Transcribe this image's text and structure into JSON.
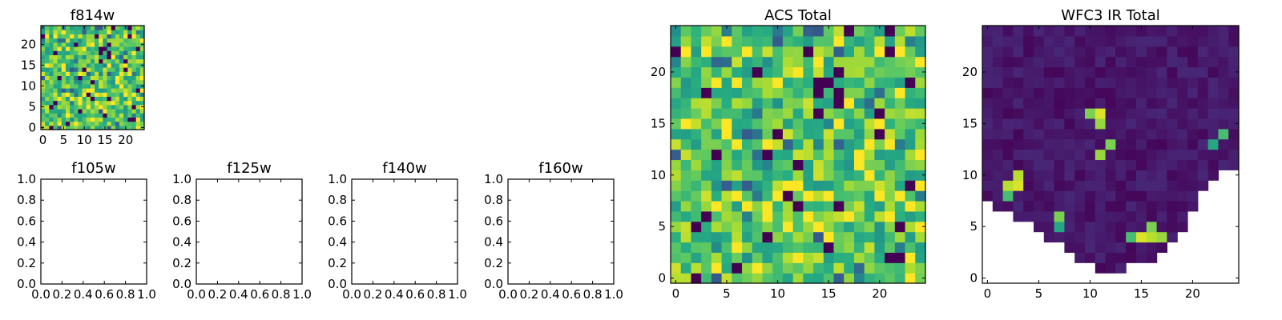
{
  "chart_data": [
    {
      "type": "heatmap",
      "title": "f814w",
      "xticks": [
        0,
        5,
        10,
        15,
        20
      ],
      "yticks": [
        0,
        5,
        10,
        15,
        20
      ],
      "xlim": [
        -0.5,
        24.5
      ],
      "ylim": [
        -0.5,
        24.5
      ],
      "grid_size": 25,
      "pattern": "noise",
      "seed": 7
    },
    {
      "type": "heatmap",
      "title": "f105w",
      "xticks": [
        0.0,
        0.2,
        0.4,
        0.6,
        0.8,
        1.0
      ],
      "yticks": [
        0.0,
        0.2,
        0.4,
        0.6,
        0.8,
        1.0
      ],
      "xlim": [
        0,
        1
      ],
      "ylim": [
        0,
        1
      ],
      "pattern": "empty"
    },
    {
      "type": "heatmap",
      "title": "f125w",
      "xticks": [
        0.0,
        0.2,
        0.4,
        0.6,
        0.8,
        1.0
      ],
      "yticks": [
        0.0,
        0.2,
        0.4,
        0.6,
        0.8,
        1.0
      ],
      "xlim": [
        0,
        1
      ],
      "ylim": [
        0,
        1
      ],
      "pattern": "empty"
    },
    {
      "type": "heatmap",
      "title": "f140w",
      "xticks": [
        0.0,
        0.2,
        0.4,
        0.6,
        0.8,
        1.0
      ],
      "yticks": [
        0.0,
        0.2,
        0.4,
        0.6,
        0.8,
        1.0
      ],
      "xlim": [
        0,
        1
      ],
      "ylim": [
        0,
        1
      ],
      "pattern": "empty"
    },
    {
      "type": "heatmap",
      "title": "f160w",
      "xticks": [
        0.0,
        0.2,
        0.4,
        0.6,
        0.8,
        1.0
      ],
      "yticks": [
        0.0,
        0.2,
        0.4,
        0.6,
        0.8,
        1.0
      ],
      "xlim": [
        0,
        1
      ],
      "ylim": [
        0,
        1
      ],
      "pattern": "empty"
    },
    {
      "type": "heatmap",
      "title": "ACS Total",
      "xticks": [
        0,
        5,
        10,
        15,
        20
      ],
      "yticks": [
        0,
        5,
        10,
        15,
        20
      ],
      "xlim": [
        -0.5,
        24.5
      ],
      "ylim": [
        -0.5,
        24.5
      ],
      "grid_size": 25,
      "pattern": "noise",
      "seed": 7
    },
    {
      "type": "heatmap",
      "title": "WFC3 IR Total",
      "xticks": [
        0,
        5,
        10,
        15,
        20
      ],
      "yticks": [
        0,
        5,
        10,
        15,
        20
      ],
      "xlim": [
        -0.5,
        24.5
      ],
      "ylim": [
        -0.5,
        24.5
      ],
      "grid_size": 25,
      "pattern": "ir",
      "seed": 11,
      "mask_bottom_edge_by_row": [
        8,
        7,
        7,
        6,
        6,
        5,
        4,
        4,
        3,
        2,
        2,
        1,
        1,
        1,
        2,
        2,
        2,
        3,
        4,
        5,
        7,
        9,
        10,
        11,
        11
      ],
      "hot_cells": [
        [
          2,
          9,
          0.9
        ],
        [
          3,
          9,
          0.95
        ],
        [
          3,
          10,
          0.9
        ],
        [
          2,
          8,
          0.7
        ],
        [
          7,
          6,
          0.8
        ],
        [
          7,
          5,
          0.6
        ],
        [
          10,
          16,
          0.8
        ],
        [
          11,
          16,
          0.95
        ],
        [
          11,
          15,
          0.85
        ],
        [
          11,
          12,
          0.85
        ],
        [
          12,
          13,
          0.8
        ],
        [
          14,
          4,
          0.7
        ],
        [
          15,
          4,
          0.95
        ],
        [
          16,
          4,
          0.9
        ],
        [
          17,
          4,
          0.85
        ],
        [
          16,
          5,
          0.8
        ],
        [
          23,
          14,
          0.7
        ],
        [
          22,
          13,
          0.6
        ]
      ]
    }
  ]
}
